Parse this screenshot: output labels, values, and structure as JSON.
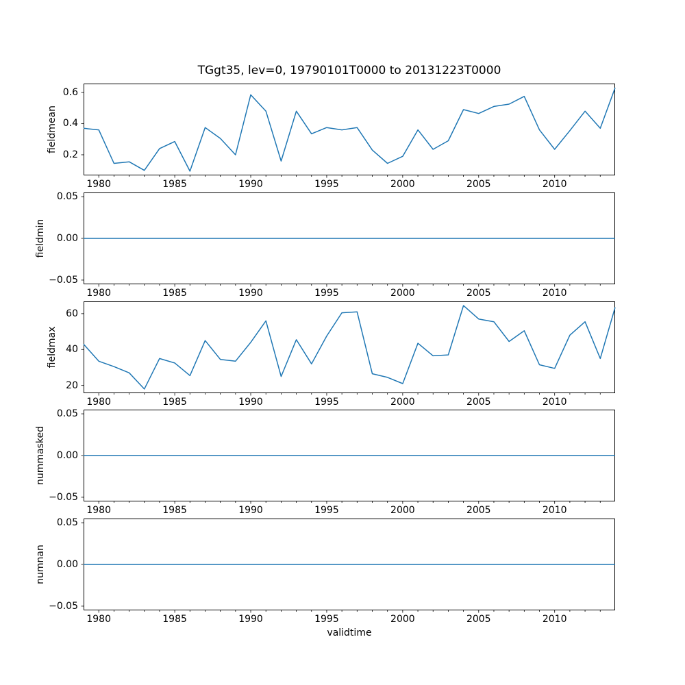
{
  "figure": {
    "background": "#ffffff",
    "text_color": "#000000"
  },
  "chart_data": {
    "type": "line",
    "title": "TGgt35, lev=0, 19790101T0000 to 20131223T0000",
    "xlabel": "validtime",
    "legend": "none",
    "grid": false,
    "line_color": "#1f77b4",
    "xlim": [
      1979.0,
      2013.98
    ],
    "xticks_major": [
      1980,
      1985,
      1990,
      1995,
      2000,
      2005,
      2010
    ],
    "xtick_labels": [
      "1980",
      "1985",
      "1990",
      "1995",
      "2000",
      "2005",
      "2010"
    ],
    "xticks_minor_step": 1,
    "x": [
      1979,
      1980,
      1981,
      1982,
      1983,
      1984,
      1985,
      1986,
      1987,
      1988,
      1989,
      1990,
      1991,
      1992,
      1993,
      1994,
      1995,
      1996,
      1997,
      1998,
      1999,
      2000,
      2001,
      2002,
      2003,
      2004,
      2005,
      2006,
      2007,
      2008,
      2009,
      2010,
      2011,
      2012,
      2013,
      2013.98
    ],
    "subplots": [
      {
        "ylabel": "fieldmean",
        "ylim": [
          0.068,
          0.657
        ],
        "yticks": [
          0.2,
          0.4,
          0.6
        ],
        "ytick_labels": [
          "0.2",
          "0.4",
          "0.6"
        ],
        "values": [
          0.37,
          0.36,
          0.145,
          0.155,
          0.1,
          0.24,
          0.285,
          0.095,
          0.375,
          0.305,
          0.2,
          0.585,
          0.48,
          0.16,
          0.48,
          0.335,
          0.375,
          0.36,
          0.375,
          0.23,
          0.145,
          0.19,
          0.36,
          0.235,
          0.29,
          0.49,
          0.465,
          0.51,
          0.525,
          0.575,
          0.36,
          0.235,
          0.355,
          0.48,
          0.37,
          0.63
        ]
      },
      {
        "ylabel": "fieldmin",
        "ylim": [
          -0.055,
          0.055
        ],
        "yticks": [
          -0.05,
          0.0,
          0.05
        ],
        "ytick_labels": [
          "−0.05",
          "0.00",
          "0.05"
        ],
        "values": [
          0,
          0,
          0,
          0,
          0,
          0,
          0,
          0,
          0,
          0,
          0,
          0,
          0,
          0,
          0,
          0,
          0,
          0,
          0,
          0,
          0,
          0,
          0,
          0,
          0,
          0,
          0,
          0,
          0,
          0,
          0,
          0,
          0,
          0,
          0,
          0
        ]
      },
      {
        "ylabel": "fieldmax",
        "ylim": [
          15.675,
          66.825
        ],
        "yticks": [
          20,
          40,
          60
        ],
        "ytick_labels": [
          "20",
          "40",
          "60"
        ],
        "values": [
          43,
          33.5,
          30.5,
          27,
          18,
          35,
          32.5,
          25.5,
          45,
          34.5,
          33.5,
          44,
          56,
          25,
          45.5,
          32,
          47.5,
          60.5,
          61,
          26.5,
          24.5,
          21,
          43.5,
          36.5,
          37,
          64.5,
          57,
          55.5,
          44.5,
          50.5,
          31.5,
          29.5,
          48,
          55.5,
          35,
          63.5
        ]
      },
      {
        "ylabel": "nummasked",
        "ylim": [
          -0.055,
          0.055
        ],
        "yticks": [
          -0.05,
          0.0,
          0.05
        ],
        "ytick_labels": [
          "−0.05",
          "0.00",
          "0.05"
        ],
        "values": [
          0,
          0,
          0,
          0,
          0,
          0,
          0,
          0,
          0,
          0,
          0,
          0,
          0,
          0,
          0,
          0,
          0,
          0,
          0,
          0,
          0,
          0,
          0,
          0,
          0,
          0,
          0,
          0,
          0,
          0,
          0,
          0,
          0,
          0,
          0,
          0
        ]
      },
      {
        "ylabel": "numnan",
        "ylim": [
          -0.055,
          0.055
        ],
        "yticks": [
          -0.05,
          0.0,
          0.05
        ],
        "ytick_labels": [
          "−0.05",
          "0.00",
          "0.05"
        ],
        "values": [
          0,
          0,
          0,
          0,
          0,
          0,
          0,
          0,
          0,
          0,
          0,
          0,
          0,
          0,
          0,
          0,
          0,
          0,
          0,
          0,
          0,
          0,
          0,
          0,
          0,
          0,
          0,
          0,
          0,
          0,
          0,
          0,
          0,
          0,
          0,
          0
        ]
      }
    ]
  }
}
